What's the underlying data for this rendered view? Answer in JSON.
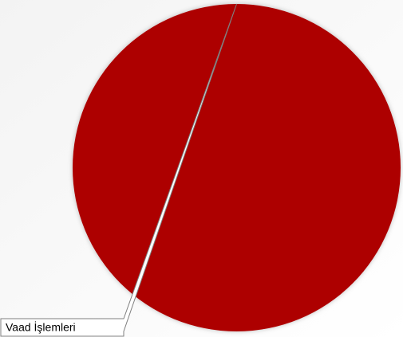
{
  "chart_data": {
    "type": "pie",
    "categories": [
      "Vaad İşlemleri"
    ],
    "values": [
      100
    ],
    "colors": [
      "#ad0000"
    ]
  }
}
